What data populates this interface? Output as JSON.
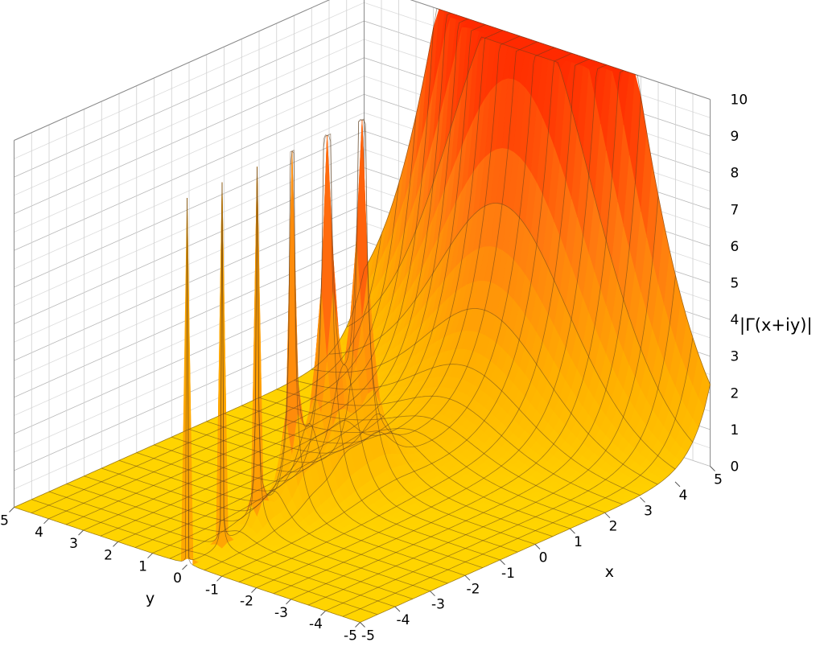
{
  "chart_data": {
    "type": "surface",
    "function": "|Γ(x+iy)|",
    "title": "",
    "xlabel": "x",
    "ylabel": "y",
    "zlabel": "|Γ(x+iy)|",
    "xlim": [
      -5,
      5
    ],
    "ylim": [
      -5,
      5
    ],
    "zlim": [
      0,
      10
    ],
    "x_ticks": [
      "-5",
      "-4",
      "-3",
      "-2",
      "-1",
      "0",
      "1",
      "2",
      "3",
      "4",
      "5"
    ],
    "y_ticks": [
      "-5",
      "-4",
      "-3",
      "-2",
      "-1",
      "0",
      "1",
      "2",
      "3",
      "4",
      "5"
    ],
    "z_ticks": [
      "0",
      "1",
      "2",
      "3",
      "4",
      "5",
      "6",
      "7",
      "8",
      "9",
      "10"
    ],
    "poles": [
      {
        "x": 0,
        "y": 0
      },
      {
        "x": -1,
        "y": 0
      },
      {
        "x": -2,
        "y": 0
      },
      {
        "x": -3,
        "y": 0
      },
      {
        "x": -4,
        "y": 0
      },
      {
        "x": -5,
        "y": 0
      }
    ],
    "colormap": [
      "#ffd400",
      "#ffb000",
      "#ff7a10",
      "#ff2a00"
    ],
    "grid": true,
    "clipped_at": 10
  }
}
